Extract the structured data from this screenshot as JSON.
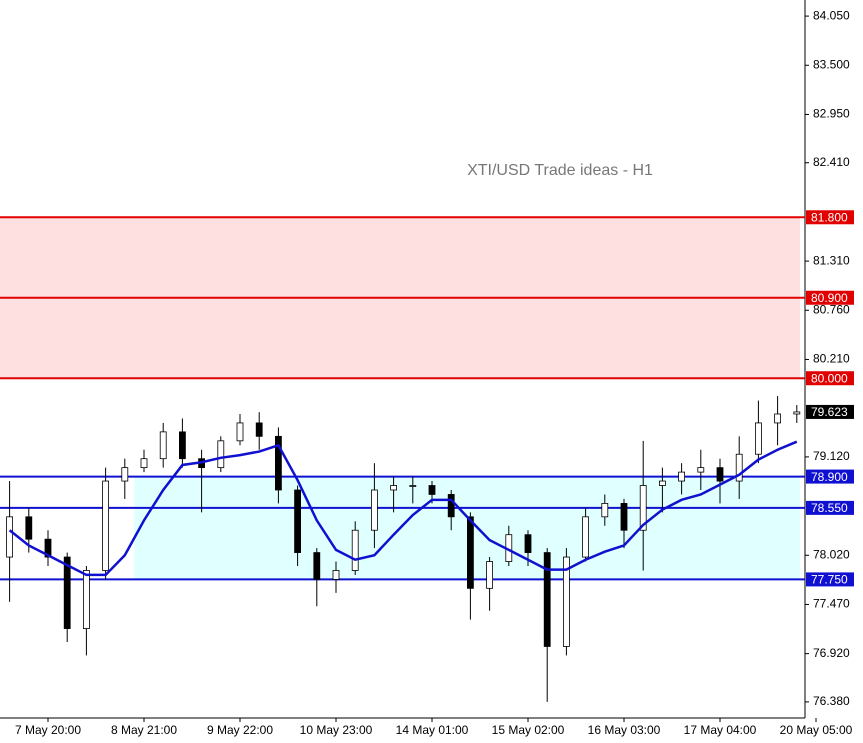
{
  "chart_data": {
    "type": "candlestick",
    "title": "XTI/USD Trade ideas - H1",
    "categories": [
      null,
      null,
      "7 May 20:00",
      null,
      null,
      null,
      null,
      "8 May 21:00",
      null,
      null,
      null,
      null,
      "9 May 22:00",
      null,
      null,
      null,
      null,
      "10 May 23:00",
      null,
      null,
      null,
      null,
      "14 May 01:00",
      null,
      null,
      null,
      null,
      "15 May 02:00",
      null,
      null,
      null,
      null,
      "16 May 03:00",
      null,
      null,
      null,
      null,
      "17 May 04:00",
      null,
      null,
      null,
      null,
      "20 May 05:00"
    ],
    "open": [
      78.0,
      78.45,
      78.2,
      78.0,
      77.2,
      77.85,
      78.85,
      79.0,
      79.1,
      79.4,
      79.1,
      79.0,
      79.3,
      79.5,
      79.35,
      78.75,
      78.05,
      77.75,
      77.85,
      78.3,
      78.75,
      78.8,
      78.8,
      78.7,
      78.45,
      77.65,
      77.95,
      78.25,
      78.05,
      77.0,
      78.0,
      78.45,
      78.6,
      78.3,
      78.8,
      78.85,
      78.95,
      79.0,
      78.85,
      79.15,
      79.5,
      79.6,
      null
    ],
    "high": [
      78.85,
      78.55,
      78.3,
      78.05,
      77.9,
      79.0,
      79.1,
      79.2,
      79.5,
      79.55,
      79.2,
      79.35,
      79.6,
      79.62,
      79.45,
      78.8,
      78.1,
      77.95,
      78.4,
      79.05,
      78.9,
      78.9,
      78.85,
      78.75,
      78.5,
      78.0,
      78.35,
      78.3,
      78.1,
      78.1,
      78.55,
      78.7,
      78.65,
      79.3,
      79.0,
      79.05,
      79.2,
      79.1,
      79.35,
      79.75,
      79.8,
      79.7,
      null
    ],
    "low": [
      77.5,
      78.05,
      77.9,
      77.05,
      76.9,
      77.75,
      78.65,
      78.95,
      79.0,
      79.0,
      78.5,
      78.95,
      79.25,
      79.2,
      78.6,
      77.9,
      77.45,
      77.6,
      77.8,
      78.1,
      78.5,
      78.6,
      78.6,
      78.3,
      77.3,
      77.4,
      77.9,
      77.9,
      76.38,
      76.9,
      77.95,
      78.35,
      78.1,
      77.85,
      78.5,
      78.7,
      78.75,
      78.6,
      78.65,
      79.05,
      79.25,
      79.5,
      null
    ],
    "close": [
      78.45,
      78.2,
      78.0,
      77.2,
      77.85,
      78.85,
      79.0,
      79.1,
      79.4,
      79.1,
      79.0,
      79.3,
      79.5,
      79.35,
      78.75,
      78.05,
      77.75,
      77.85,
      78.3,
      78.75,
      78.8,
      78.8,
      78.7,
      78.45,
      77.65,
      77.95,
      78.25,
      78.05,
      77.0,
      78.0,
      78.45,
      78.6,
      78.3,
      78.8,
      78.85,
      78.95,
      79.0,
      78.85,
      79.15,
      79.5,
      79.6,
      79.623,
      null
    ],
    "up_color": "#008000",
    "down_color": "#cc0000",
    "ma": {
      "color": "#1010d0",
      "values": [
        78.3,
        78.13,
        78.02,
        77.91,
        77.8,
        77.8,
        78.02,
        78.41,
        78.75,
        79.03,
        79.06,
        79.11,
        79.14,
        79.18,
        79.25,
        78.86,
        78.41,
        78.08,
        77.97,
        78.02,
        78.25,
        78.47,
        78.64,
        78.64,
        78.41,
        78.19,
        78.08,
        77.97,
        77.86,
        77.86,
        77.97,
        78.06,
        78.13,
        78.36,
        78.53,
        78.64,
        78.7,
        78.81,
        78.92,
        79.09,
        79.2,
        79.29,
        null
      ]
    },
    "ylim": [
      76.2,
      84.23
    ],
    "yticks": [
      {
        "value": 84.05,
        "label": "84.050"
      },
      {
        "value": 83.5,
        "label": "83.500"
      },
      {
        "value": 82.95,
        "label": "82.950"
      },
      {
        "value": 82.41,
        "label": "82.410"
      },
      {
        "value": 81.31,
        "label": "81.310"
      },
      {
        "value": 80.76,
        "label": "80.760"
      },
      {
        "value": 80.21,
        "label": "80.210"
      },
      {
        "value": 79.12,
        "label": "79.120"
      },
      {
        "value": 78.02,
        "label": "78.020"
      },
      {
        "value": 77.47,
        "label": "77.470"
      },
      {
        "value": 76.92,
        "label": "76.920"
      },
      {
        "value": 76.38,
        "label": "76.380"
      }
    ],
    "zones": [
      {
        "from": 80.0,
        "to": 81.8,
        "color": "#ffe0e0",
        "start": 0
      },
      {
        "from": 77.75,
        "to": 78.9,
        "color": "#e0ffff",
        "start": 7
      }
    ],
    "levels": [
      {
        "value": 81.8,
        "label": "81.800",
        "color": "#e00000"
      },
      {
        "value": 80.9,
        "label": "80.900",
        "color": "#e00000"
      },
      {
        "value": 80.0,
        "label": "80.000",
        "color": "#e00000"
      },
      {
        "value": 78.9,
        "label": "78.900",
        "color": "#1010d0"
      },
      {
        "value": 78.55,
        "label": "78.550",
        "color": "#1010d0"
      },
      {
        "value": 77.75,
        "label": "77.750",
        "color": "#1010d0"
      }
    ],
    "current_price": {
      "value": 79.623,
      "label": "79.623",
      "color": "#000000"
    }
  }
}
